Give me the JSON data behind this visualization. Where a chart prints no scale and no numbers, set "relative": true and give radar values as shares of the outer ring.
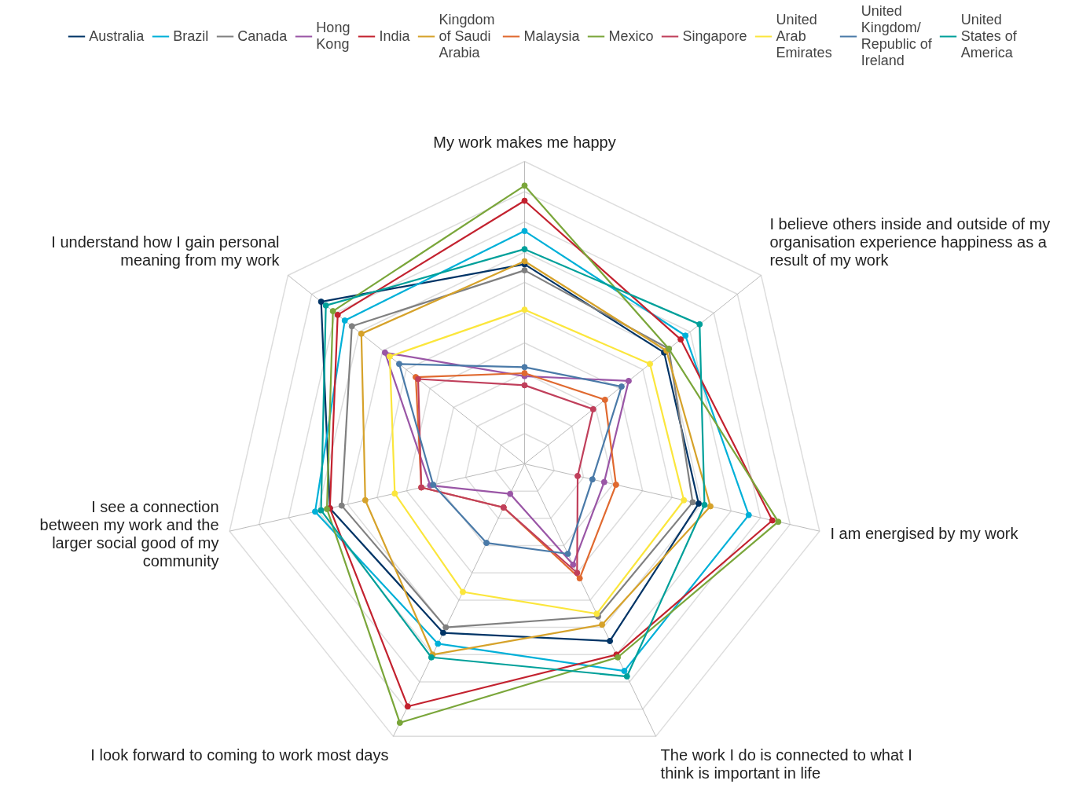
{
  "chart_data": {
    "type": "radar",
    "relative": true,
    "grid": true,
    "legend": "top",
    "marker": "circle",
    "line_style": "solid",
    "categories": [
      "My work makes me happy",
      "I believe others inside and outside of my\norganisation experience happiness as a\nresult of my work",
      "I am energised by my work",
      "The work I do is connected to what I\nthink is important in life",
      "I look forward to coming to work most days",
      "I see a connection\nbetween my work and the\nlarger social good of my\ncommunity",
      "I understand how I gain personal\nmeaning from my work"
    ],
    "series": [
      {
        "name": "Australia",
        "color": "#003466",
        "values": [
          0.66,
          0.59,
          0.59,
          0.65,
          0.62,
          0.66,
          0.86
        ]
      },
      {
        "name": "Brazil",
        "color": "#00b0d8",
        "values": [
          0.77,
          0.68,
          0.76,
          0.76,
          0.66,
          0.71,
          0.76
        ]
      },
      {
        "name": "Canada",
        "color": "#808080",
        "values": [
          0.64,
          0.61,
          0.57,
          0.56,
          0.6,
          0.62,
          0.73
        ]
      },
      {
        "name": "Hong\nKong",
        "color": "#9a56a6",
        "values": [
          0.29,
          0.44,
          0.27,
          0.37,
          0.11,
          0.32,
          0.59
        ]
      },
      {
        "name": "India",
        "color": "#c3222f",
        "values": [
          0.87,
          0.66,
          0.84,
          0.7,
          0.89,
          0.66,
          0.79
        ]
      },
      {
        "name": "Kingdom\nof Saudi\nArabia",
        "color": "#d6a22a",
        "values": [
          0.67,
          0.6,
          0.63,
          0.59,
          0.7,
          0.54,
          0.69
        ]
      },
      {
        "name": "Malaysia",
        "color": "#e0692f",
        "values": [
          0.3,
          0.34,
          0.31,
          0.42,
          0.16,
          0.35,
          0.46
        ]
      },
      {
        "name": "Mexico",
        "color": "#7aa63a",
        "values": [
          0.92,
          0.61,
          0.86,
          0.71,
          0.95,
          0.67,
          0.81
        ]
      },
      {
        "name": "Singapore",
        "color": "#c03f5b",
        "values": [
          0.26,
          0.29,
          0.18,
          0.4,
          0.16,
          0.35,
          0.45
        ]
      },
      {
        "name": "United\nArab\nEmirates",
        "color": "#fbe63c",
        "values": [
          0.51,
          0.53,
          0.54,
          0.55,
          0.47,
          0.44,
          0.57
        ]
      },
      {
        "name": "United\nKingdom/\nRepublic of\nIreland",
        "color": "#4a7aa8",
        "values": [
          0.32,
          0.41,
          0.23,
          0.33,
          0.29,
          0.31,
          0.53
        ]
      },
      {
        "name": "United\nStates of\nAmerica",
        "color": "#00a09a",
        "values": [
          0.71,
          0.74,
          0.61,
          0.78,
          0.71,
          0.69,
          0.84
        ]
      }
    ]
  }
}
